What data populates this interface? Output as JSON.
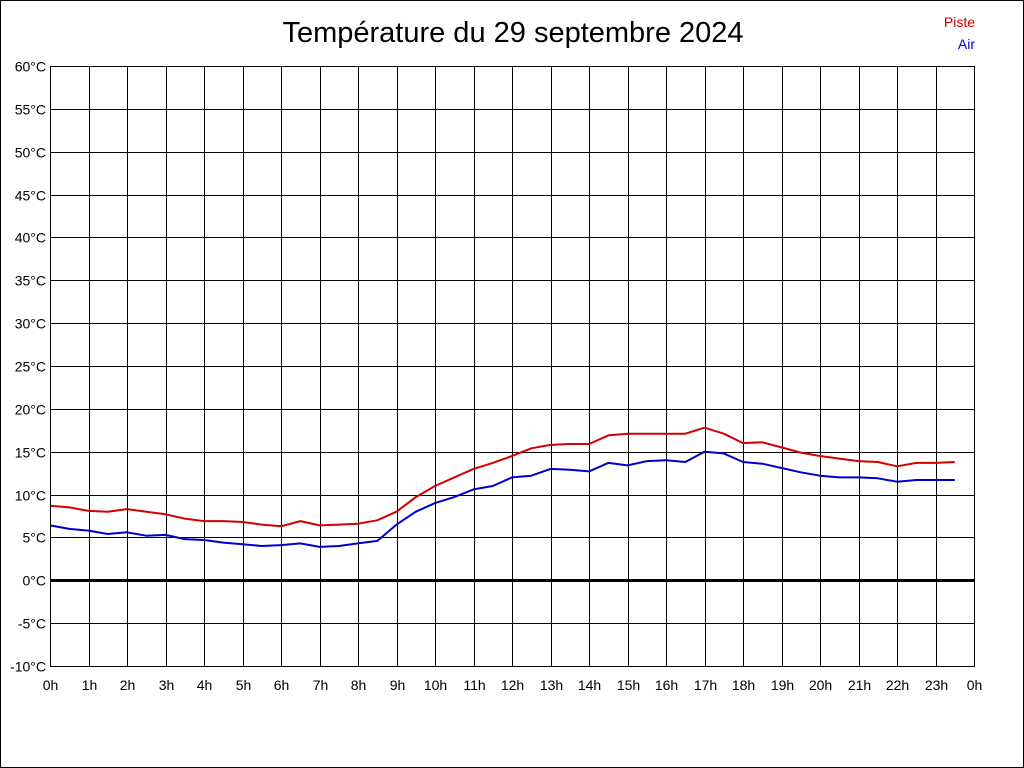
{
  "chart_data": {
    "type": "line",
    "title": "Température du 29 septembre 2024",
    "xlabel": "",
    "ylabel": "",
    "x": [
      0,
      0.5,
      1,
      1.5,
      2,
      2.5,
      3,
      3.5,
      4,
      4.5,
      5,
      5.5,
      6,
      6.5,
      7,
      7.5,
      8,
      8.5,
      9,
      9.5,
      10,
      10.5,
      11,
      11.5,
      12,
      12.5,
      13,
      13.5,
      14,
      14.5,
      15,
      15.5,
      16,
      16.5,
      17,
      17.5,
      18,
      18.5,
      19,
      19.5,
      20,
      20.5,
      21,
      21.5,
      22,
      22.5,
      23,
      23.5
    ],
    "x_tick_labels": [
      "0h",
      "1h",
      "2h",
      "3h",
      "4h",
      "5h",
      "6h",
      "7h",
      "8h",
      "9h",
      "10h",
      "11h",
      "12h",
      "13h",
      "14h",
      "15h",
      "16h",
      "17h",
      "18h",
      "19h",
      "20h",
      "21h",
      "22h",
      "23h",
      "0h"
    ],
    "xlim": [
      0,
      24
    ],
    "y_tick_labels": [
      "-10°C",
      "-5°C",
      "0°C",
      "5°C",
      "10°C",
      "15°C",
      "20°C",
      "25°C",
      "30°C",
      "35°C",
      "40°C",
      "45°C",
      "50°C",
      "55°C",
      "60°C"
    ],
    "ylim": [
      -10,
      60
    ],
    "grid": true,
    "zero_line": true,
    "legend_position": "top-right",
    "series": [
      {
        "name": "Piste",
        "color": "#d40000",
        "values": [
          8.7,
          8.5,
          8.1,
          8.0,
          8.3,
          8.0,
          7.7,
          7.2,
          6.9,
          6.9,
          6.8,
          6.5,
          6.3,
          6.9,
          6.4,
          6.5,
          6.6,
          7.0,
          8.0,
          9.7,
          11.0,
          12.0,
          13.0,
          13.7,
          14.5,
          15.4,
          15.8,
          15.9,
          15.9,
          16.9,
          17.1,
          17.1,
          17.1,
          17.1,
          17.8,
          17.1,
          16.0,
          16.1,
          15.5,
          14.9,
          14.5,
          14.2,
          13.9,
          13.8,
          13.3,
          13.7,
          13.7,
          13.8
        ]
      },
      {
        "name": "Air",
        "color": "#0000cc",
        "values": [
          6.4,
          6.0,
          5.8,
          5.4,
          5.6,
          5.2,
          5.3,
          4.8,
          4.7,
          4.4,
          4.2,
          4.0,
          4.1,
          4.3,
          3.9,
          4.0,
          4.3,
          4.6,
          6.5,
          8.0,
          9.0,
          9.7,
          10.6,
          11.0,
          12.0,
          12.2,
          13.0,
          12.9,
          12.7,
          13.7,
          13.4,
          13.9,
          14.0,
          13.8,
          15.0,
          14.8,
          13.8,
          13.6,
          13.1,
          12.6,
          12.2,
          12.0,
          12.0,
          11.9,
          11.5,
          11.7,
          11.7,
          11.7
        ]
      }
    ]
  }
}
